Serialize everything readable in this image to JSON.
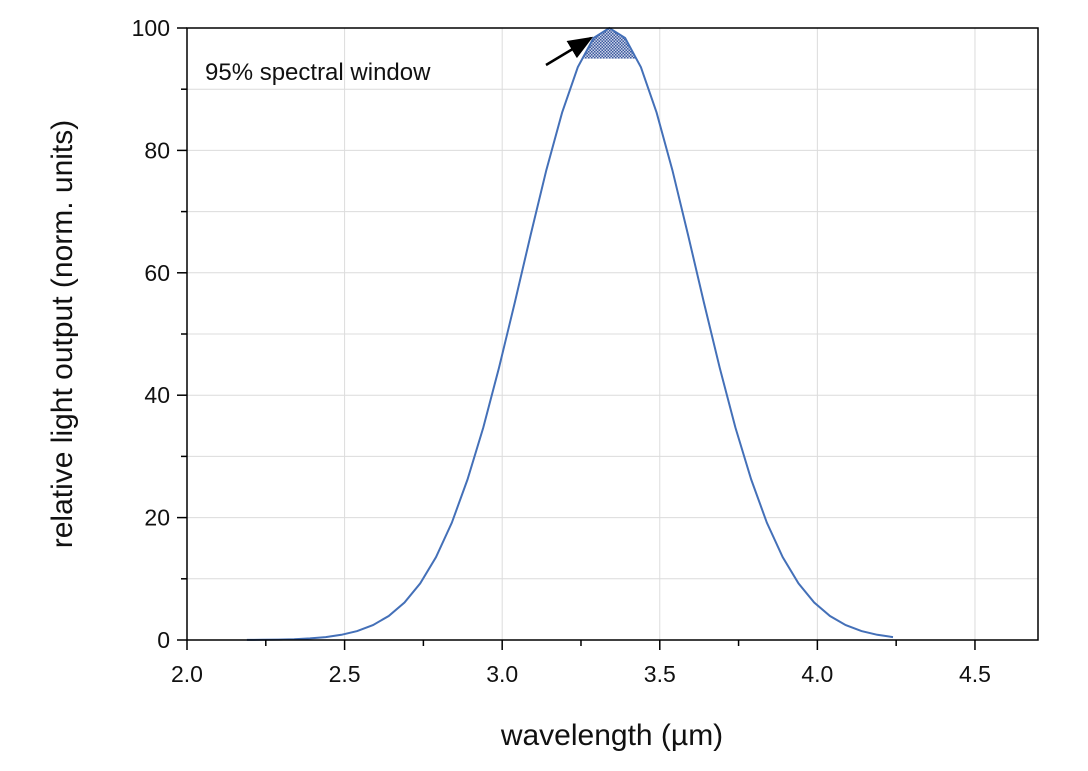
{
  "chart_data": {
    "type": "line",
    "title": "",
    "xlabel": "wavelength (µm)",
    "ylabel": "relative light output (norm. units)",
    "xlim": [
      2.0,
      4.7
    ],
    "ylim": [
      0,
      100
    ],
    "x_ticks": [
      "2.0",
      "2.5",
      "3.0",
      "3.5",
      "4.0",
      "4.5"
    ],
    "y_ticks": [
      "0",
      "20",
      "40",
      "60",
      "80",
      "100"
    ],
    "grid": true,
    "line_color": "#4470b8",
    "fill_color": "#4a5f9a",
    "annotation": {
      "text": "95% spectral window",
      "threshold": 95
    },
    "series": [
      {
        "x": [
          2.19,
          2.24,
          2.29,
          2.34,
          2.39,
          2.44,
          2.49,
          2.54,
          2.59,
          2.64,
          2.69,
          2.74,
          2.79,
          2.84,
          2.89,
          2.94,
          2.99,
          3.04,
          3.09,
          3.14,
          3.19,
          3.24,
          3.29,
          3.34,
          3.39,
          3.44,
          3.49,
          3.54,
          3.59,
          3.64,
          3.69,
          3.74,
          3.79,
          3.84,
          3.89,
          3.94,
          3.99,
          4.04,
          4.09,
          4.14,
          4.19,
          4.24
        ],
        "y": [
          0.016,
          0.034,
          0.068,
          0.134,
          0.256,
          0.472,
          0.842,
          1.45,
          2.43,
          3.92,
          6.12,
          9.25,
          13.53,
          19.15,
          26.22,
          34.72,
          44.49,
          55.15,
          66.16,
          76.76,
          86.18,
          93.6,
          98.36,
          100,
          98.36,
          93.6,
          86.18,
          76.76,
          66.16,
          55.15,
          44.49,
          34.72,
          26.22,
          19.15,
          13.53,
          9.25,
          6.12,
          3.92,
          2.43,
          1.45,
          0.842,
          0.472
        ]
      }
    ]
  }
}
